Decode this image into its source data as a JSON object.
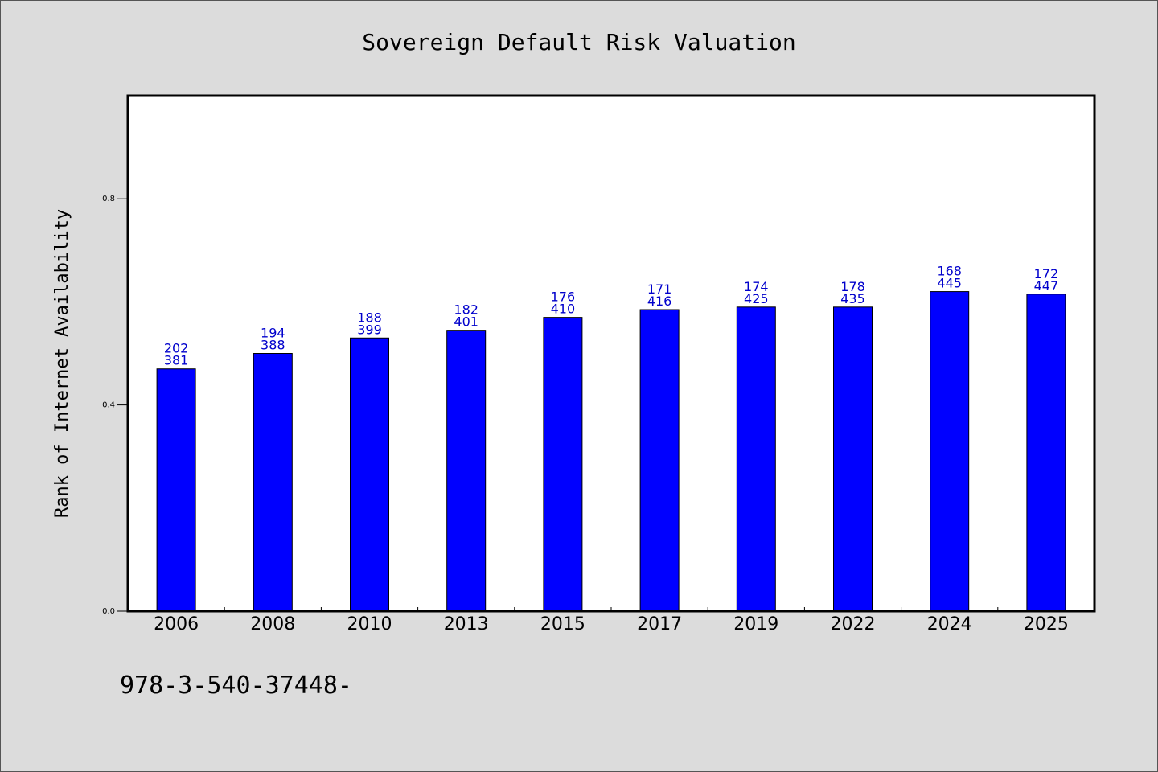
{
  "chart_data": {
    "type": "bar",
    "title": "Sovereign Default Risk Valuation",
    "xlabel": "",
    "ylabel": "Rank of Internet Availability",
    "ylim": [
      0,
      1.0
    ],
    "yticks": [
      "0.0",
      "0.4",
      "0.8"
    ],
    "ytick_values": [
      0.0,
      0.4,
      0.8
    ],
    "grid": false,
    "categories": [
      "2006",
      "2008",
      "2010",
      "2013",
      "2015",
      "2017",
      "2019",
      "2022",
      "2024",
      "2025"
    ],
    "values": [
      0.47,
      0.5,
      0.53,
      0.545,
      0.57,
      0.585,
      0.59,
      0.59,
      0.62,
      0.615
    ],
    "label_top": [
      "202",
      "194",
      "188",
      "182",
      "176",
      "171",
      "174",
      "178",
      "168",
      "172"
    ],
    "label_bottom": [
      "381",
      "388",
      "399",
      "401",
      "410",
      "416",
      "425",
      "435",
      "445",
      "447"
    ],
    "bar_color": "#0000ff",
    "label_color": "#0000cc"
  },
  "footer": {
    "text": "978-3-540-37448-"
  }
}
